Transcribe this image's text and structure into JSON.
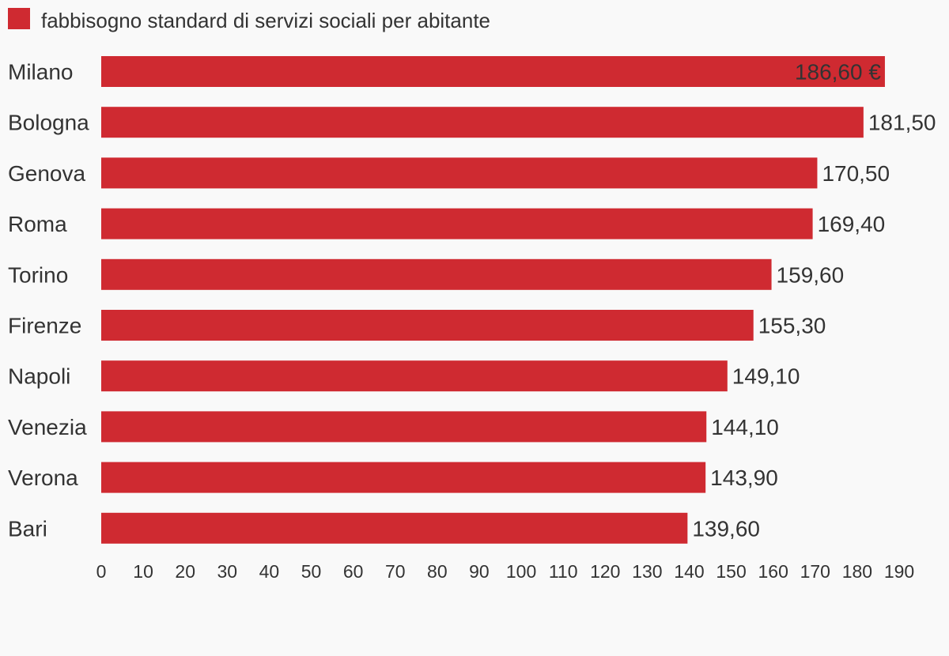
{
  "chart_data": {
    "type": "bar",
    "orientation": "horizontal",
    "categories": [
      "Milano",
      "Bologna",
      "Genova",
      "Roma",
      "Torino",
      "Firenze",
      "Napoli",
      "Venezia",
      "Verona",
      "Bari"
    ],
    "series": [
      {
        "name": "fabbisogno standard di servizi sociali per abitante",
        "values": [
          186.6,
          181.5,
          170.5,
          169.4,
          159.6,
          155.3,
          149.1,
          144.1,
          143.9,
          139.6
        ],
        "labels": [
          "186,60 €",
          "181,50",
          "170,50",
          "169,40",
          "159,60",
          "155,30",
          "149,10",
          "144,10",
          "143,90",
          "139,60"
        ]
      }
    ],
    "xlim": [
      0,
      190
    ],
    "x_ticks": [
      0,
      10,
      20,
      30,
      40,
      50,
      60,
      70,
      80,
      90,
      100,
      110,
      120,
      130,
      140,
      150,
      160,
      170,
      180,
      190
    ],
    "legend_position": "top-left",
    "grid": false,
    "bar_color": "#cf2a31"
  }
}
